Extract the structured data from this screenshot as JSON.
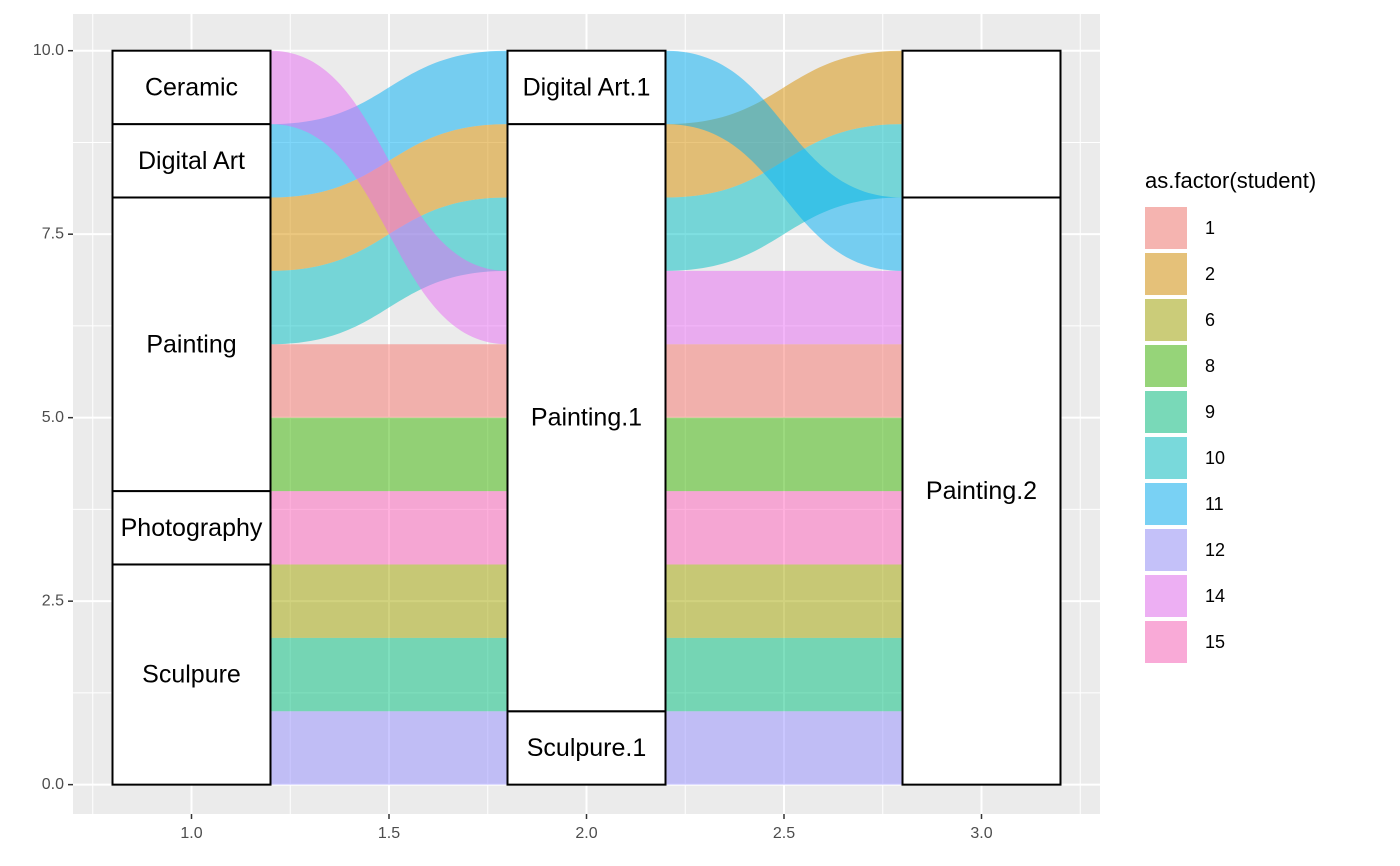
{
  "chart_data": {
    "type": "alluvial",
    "xlim": [
      0.7,
      3.3
    ],
    "ylim": [
      -0.4,
      10.5
    ],
    "x_ticks": [
      {
        "value": 1.0,
        "label": "1.0"
      },
      {
        "value": 1.5,
        "label": "1.5"
      },
      {
        "value": 2.0,
        "label": "2.0"
      },
      {
        "value": 2.5,
        "label": "2.5"
      },
      {
        "value": 3.0,
        "label": "3.0"
      }
    ],
    "y_ticks": [
      {
        "value": 0.0,
        "label": "0.0"
      },
      {
        "value": 2.5,
        "label": "2.5"
      },
      {
        "value": 5.0,
        "label": "5.0"
      },
      {
        "value": 7.5,
        "label": "7.5"
      },
      {
        "value": 10.0,
        "label": "10.0"
      }
    ],
    "stratum_width": 0.4,
    "axes": [
      {
        "x": 1,
        "strata": [
          {
            "label": "Sculpure",
            "ymin": 0,
            "ymax": 3
          },
          {
            "label": "Photography",
            "ymin": 3,
            "ymax": 4
          },
          {
            "label": "Painting",
            "ymin": 4,
            "ymax": 8
          },
          {
            "label": "Digital Art",
            "ymin": 8,
            "ymax": 9
          },
          {
            "label": "Ceramic",
            "ymin": 9,
            "ymax": 10
          }
        ]
      },
      {
        "x": 2,
        "strata": [
          {
            "label": "Sculpure.1",
            "ymin": 0,
            "ymax": 1
          },
          {
            "label": "Painting.1",
            "ymin": 1,
            "ymax": 9
          },
          {
            "label": "Digital Art.1",
            "ymin": 9,
            "ymax": 10
          }
        ]
      },
      {
        "x": 3,
        "strata": [
          {
            "label": "Painting.2",
            "ymin": 0,
            "ymax": 8
          },
          {
            "label": "",
            "ymin": 8,
            "ymax": 10
          }
        ]
      }
    ],
    "flows": [
      {
        "student": "12",
        "from_x": 1,
        "to_x": 2,
        "from": [
          0,
          1
        ],
        "to": [
          0,
          1
        ]
      },
      {
        "student": "9",
        "from_x": 1,
        "to_x": 2,
        "from": [
          1,
          2
        ],
        "to": [
          1,
          2
        ]
      },
      {
        "student": "6",
        "from_x": 1,
        "to_x": 2,
        "from": [
          2,
          3
        ],
        "to": [
          2,
          3
        ]
      },
      {
        "student": "15",
        "from_x": 1,
        "to_x": 2,
        "from": [
          3,
          4
        ],
        "to": [
          3,
          4
        ]
      },
      {
        "student": "8",
        "from_x": 1,
        "to_x": 2,
        "from": [
          4,
          5
        ],
        "to": [
          4,
          5
        ]
      },
      {
        "student": "1",
        "from_x": 1,
        "to_x": 2,
        "from": [
          5,
          6
        ],
        "to": [
          5,
          6
        ]
      },
      {
        "student": "10",
        "from_x": 1,
        "to_x": 2,
        "from": [
          6,
          7
        ],
        "to": [
          7,
          8
        ]
      },
      {
        "student": "2",
        "from_x": 1,
        "to_x": 2,
        "from": [
          7,
          8
        ],
        "to": [
          8,
          9
        ]
      },
      {
        "student": "11",
        "from_x": 1,
        "to_x": 2,
        "from": [
          8,
          9
        ],
        "to": [
          9,
          10
        ]
      },
      {
        "student": "14",
        "from_x": 1,
        "to_x": 2,
        "from": [
          9,
          10
        ],
        "to": [
          6,
          7
        ]
      },
      {
        "student": "12",
        "from_x": 2,
        "to_x": 3,
        "from": [
          0,
          1
        ],
        "to": [
          0,
          1
        ]
      },
      {
        "student": "9",
        "from_x": 2,
        "to_x": 3,
        "from": [
          1,
          2
        ],
        "to": [
          1,
          2
        ]
      },
      {
        "student": "6",
        "from_x": 2,
        "to_x": 3,
        "from": [
          2,
          3
        ],
        "to": [
          2,
          3
        ]
      },
      {
        "student": "15",
        "from_x": 2,
        "to_x": 3,
        "from": [
          3,
          4
        ],
        "to": [
          3,
          4
        ]
      },
      {
        "student": "8",
        "from_x": 2,
        "to_x": 3,
        "from": [
          4,
          5
        ],
        "to": [
          4,
          5
        ]
      },
      {
        "student": "1",
        "from_x": 2,
        "to_x": 3,
        "from": [
          5,
          6
        ],
        "to": [
          5,
          6
        ]
      },
      {
        "student": "14",
        "from_x": 2,
        "to_x": 3,
        "from": [
          6,
          7
        ],
        "to": [
          6,
          7
        ]
      },
      {
        "student": "10",
        "from_x": 2,
        "to_x": 3,
        "from": [
          7,
          8
        ],
        "to": [
          8,
          9
        ]
      },
      {
        "student": "2",
        "from_x": 2,
        "to_x": 3,
        "from": [
          8,
          9
        ],
        "to": [
          9,
          10
        ]
      },
      {
        "student": "11",
        "from_x": 2,
        "to_x": 3,
        "from": [
          9,
          10
        ],
        "to": [
          7,
          8
        ]
      }
    ],
    "legend": {
      "title": "as.factor(student)",
      "placement": "right",
      "entries": [
        {
          "label": "1",
          "color": "#F8766D"
        },
        {
          "label": "2",
          "color": "#D89000"
        },
        {
          "label": "6",
          "color": "#A3A500"
        },
        {
          "label": "8",
          "color": "#39B600"
        },
        {
          "label": "9",
          "color": "#00BF7D"
        },
        {
          "label": "10",
          "color": "#00BFC4"
        },
        {
          "label": "11",
          "color": "#00B0F6"
        },
        {
          "label": "12",
          "color": "#9590FF"
        },
        {
          "label": "14",
          "color": "#E76BF3"
        },
        {
          "label": "15",
          "color": "#FF62BC"
        }
      ]
    },
    "flow_opacity": 0.5,
    "panel_background": "#EBEBEB",
    "gridline_color": "#FFFFFF",
    "grid": true
  }
}
